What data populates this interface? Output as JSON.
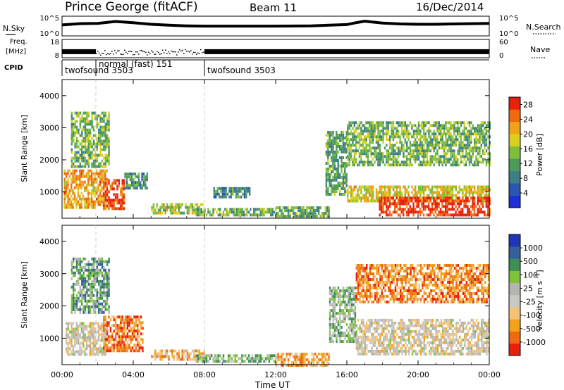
{
  "header": {
    "station": "Prince George (fitACF)",
    "beam": "Beam 11",
    "date": "16/Dec/2014"
  },
  "left_labels": {
    "nsky": "N.Sky",
    "freq_line1": "Freq.",
    "freq_line2": "[MHz]",
    "cpid": "CPID"
  },
  "right_labels": {
    "nsearch": "N.Search",
    "nave": "Nave"
  },
  "colors": {
    "power_scale": [
      "#1d2fd6",
      "#2a56b0",
      "#3e7f86",
      "#4f9a5a",
      "#7fbf3c",
      "#d8cf1e",
      "#f0a21a",
      "#ee6a12",
      "#e8200e"
    ],
    "velocity_scale": [
      "#e8200e",
      "#ee6a12",
      "#f0a21a",
      "#f5c27a",
      "#c8c8c4",
      "#b5b5b0",
      "#7fc33c",
      "#3f8f55",
      "#35609d",
      "#2236b5"
    ],
    "frame": "#000000",
    "marker_line": "#cfcfcf"
  },
  "chart_data": [
    {
      "type": "line",
      "name_label": "N.Sky",
      "x_hours": [
        0,
        1,
        2,
        3,
        4,
        5,
        6,
        7,
        8,
        10,
        12,
        14,
        15,
        16,
        16.5,
        17,
        18,
        19,
        20,
        21,
        22,
        23,
        24
      ],
      "values_log10": [
        3.1,
        3.5,
        3.6,
        4.2,
        3.8,
        3.3,
        3.0,
        2.8,
        2.7,
        2.7,
        2.7,
        2.8,
        3.0,
        3.2,
        3.8,
        4.3,
        3.7,
        3.4,
        3.3,
        3.3,
        3.4,
        3.5,
        3.6
      ],
      "ylim_log10": [
        0,
        5
      ],
      "left_ticks": [
        "10^5",
        "10^0"
      ],
      "right_ticks": [
        "10^5",
        "10^0"
      ]
    },
    {
      "type": "scatter",
      "name_label": "Freq. [MHz]",
      "segments": [
        {
          "from": 0,
          "to": 1.9,
          "freq_mhz": 11.5
        },
        {
          "from": 1.9,
          "to": 8.0,
          "freq_mhz": 10.8
        },
        {
          "from": 8.0,
          "to": 24,
          "freq_mhz": 11.5
        }
      ],
      "left_ticks": [
        "18",
        "8"
      ],
      "right_ticks": [
        "60",
        "0"
      ],
      "ylim": [
        8,
        18
      ]
    },
    {
      "type": "table",
      "name_label": "CPID",
      "programs": [
        {
          "start_hour": 0,
          "label": "twofsound 3503"
        },
        {
          "start_hour": 1.9,
          "label": "normal (fast) 151"
        },
        {
          "start_hour": 8.0,
          "label": "twofsound 3503"
        }
      ]
    },
    {
      "type": "heatmap",
      "parameter": "Power",
      "ylabel": "Slant Range [km]",
      "yticks": [
        1000,
        2000,
        3000,
        4000
      ],
      "ylim": [
        180,
        4500
      ],
      "xlim_hours": [
        0,
        24
      ],
      "colorbar_label": "Power [dB]",
      "colorbar_ticks": [
        4,
        8,
        12,
        16,
        20,
        24,
        28
      ],
      "colorbar_range": [
        0,
        30
      ],
      "regions": [
        {
          "x0": 0.1,
          "x1": 2.5,
          "r0": 500,
          "r1": 1700,
          "level": 0.72
        },
        {
          "x0": 2.3,
          "x1": 3.5,
          "r0": 500,
          "r1": 1400,
          "level": 0.92
        },
        {
          "x0": 3.5,
          "x1": 4.8,
          "r0": 1100,
          "r1": 1600,
          "level": 0.35
        },
        {
          "x0": 0.5,
          "x1": 2.6,
          "r0": 1800,
          "r1": 3500,
          "level": 0.45
        },
        {
          "x0": 5.0,
          "x1": 8.0,
          "r0": 380,
          "r1": 650,
          "level": 0.55
        },
        {
          "x0": 7.5,
          "x1": 12.0,
          "r0": 280,
          "r1": 500,
          "level": 0.45
        },
        {
          "x0": 8.5,
          "x1": 10.5,
          "r0": 800,
          "r1": 1150,
          "level": 0.32
        },
        {
          "x0": 12.0,
          "x1": 15.0,
          "r0": 200,
          "r1": 550,
          "level": 0.4
        },
        {
          "x0": 14.8,
          "x1": 16.0,
          "r0": 900,
          "r1": 2900,
          "level": 0.4
        },
        {
          "x0": 16.0,
          "x1": 24,
          "r0": 1800,
          "r1": 3200,
          "level": 0.45
        },
        {
          "x0": 16.0,
          "x1": 24,
          "r0": 700,
          "r1": 1200,
          "level": 0.62
        },
        {
          "x0": 17.8,
          "x1": 24,
          "r0": 300,
          "r1": 850,
          "level": 0.95
        }
      ]
    },
    {
      "type": "heatmap",
      "parameter": "Velocity",
      "ylabel": "Slant Range [km]",
      "yticks": [
        1000,
        2000,
        3000,
        4000
      ],
      "ylim": [
        180,
        4500
      ],
      "xlim_hours": [
        0,
        24
      ],
      "xticks": [
        "00:00",
        "04:00",
        "08:00",
        "12:00",
        "16:00",
        "20:00",
        "00:00"
      ],
      "xlabel": "Time UT",
      "colorbar_label": "Velocity [m s-1]",
      "colorbar_ticks": [
        -1000,
        -500,
        -100,
        -25,
        25,
        100,
        500,
        1000
      ],
      "regions": [
        {
          "x0": 0.2,
          "x1": 2.5,
          "r0": 500,
          "r1": 1500,
          "level": 0.45
        },
        {
          "x0": 2.3,
          "x1": 4.5,
          "r0": 600,
          "r1": 1700,
          "level": 0.18
        },
        {
          "x0": 0.5,
          "x1": 2.6,
          "r0": 1800,
          "r1": 3500,
          "level": 0.7
        },
        {
          "x0": 5.0,
          "x1": 8.0,
          "r0": 380,
          "r1": 650,
          "level": 0.3
        },
        {
          "x0": 7.5,
          "x1": 12.0,
          "r0": 280,
          "r1": 500,
          "level": 0.62
        },
        {
          "x0": 12.0,
          "x1": 15.0,
          "r0": 200,
          "r1": 550,
          "level": 0.28
        },
        {
          "x0": 15.0,
          "x1": 16.5,
          "r0": 900,
          "r1": 2600,
          "level": 0.62
        },
        {
          "x0": 16.5,
          "x1": 24,
          "r0": 2100,
          "r1": 3300,
          "level": 0.22
        },
        {
          "x0": 16.5,
          "x1": 24,
          "r0": 500,
          "r1": 1600,
          "level": 0.45
        }
      ]
    }
  ]
}
